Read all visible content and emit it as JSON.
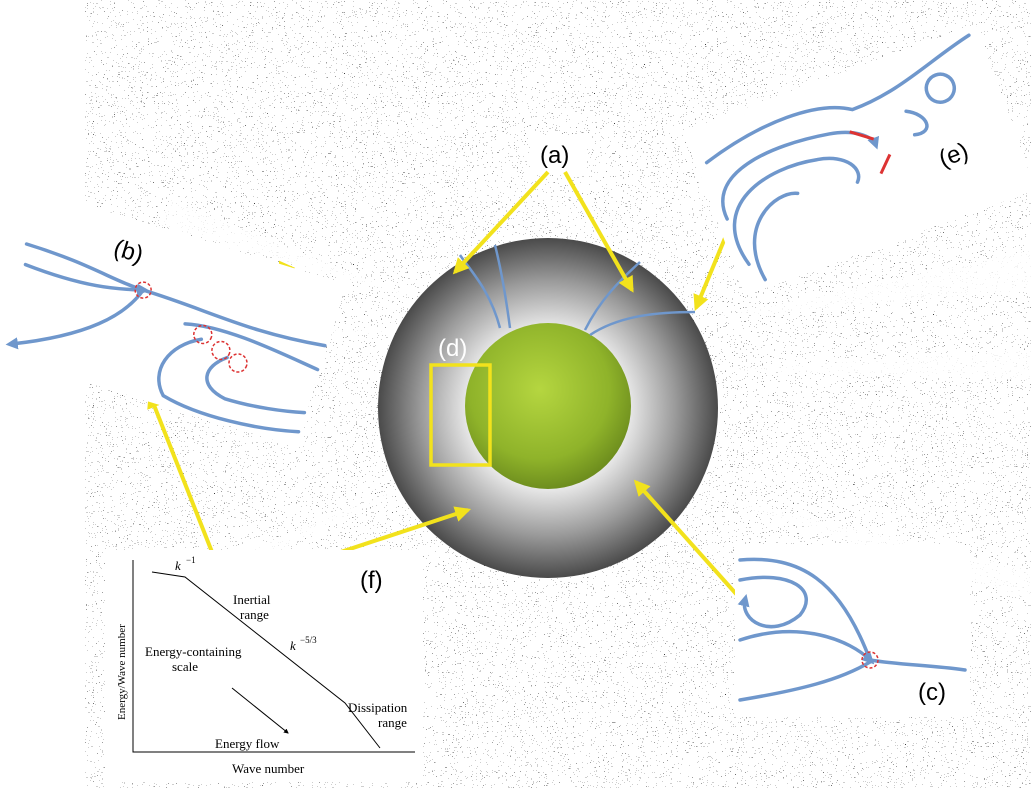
{
  "labels": {
    "a": "(a)",
    "b": "(b)",
    "c": "(c)",
    "d": "(d)",
    "e": "(e)",
    "f": "(f)"
  },
  "spectrum_inset": {
    "y_axis_label": "Energy/Wave number",
    "x_axis_label": "Wave number",
    "slope_1": {
      "base": "k",
      "exponent": "−1"
    },
    "slope_2": {
      "base": "k",
      "exponent": "−5/3"
    },
    "inertial_range": [
      "Inertial",
      "range"
    ],
    "energy_containing_scale": [
      "Energy-containing",
      "scale"
    ],
    "energy_flow": "Energy flow",
    "dissipation_range": [
      "Dissipation",
      "range"
    ]
  }
}
